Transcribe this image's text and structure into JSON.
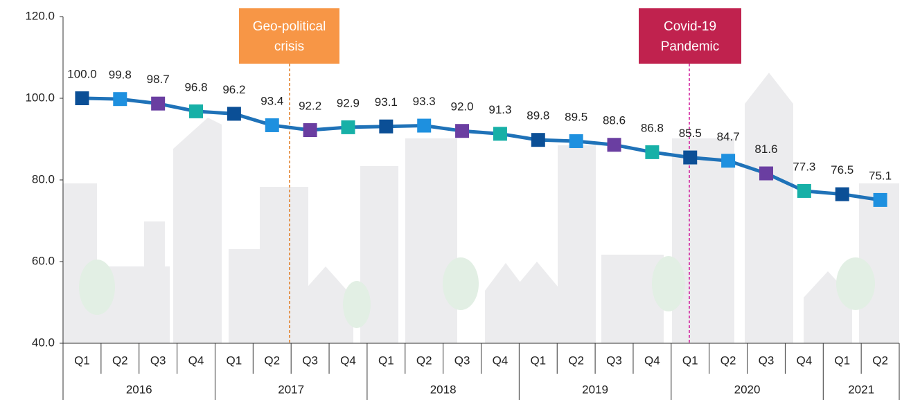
{
  "chart_data": {
    "type": "line",
    "groups": [
      {
        "label": "2016",
        "categories": [
          "Q1",
          "Q2",
          "Q3",
          "Q4"
        ]
      },
      {
        "label": "2017",
        "categories": [
          "Q1",
          "Q2",
          "Q3",
          "Q4"
        ]
      },
      {
        "label": "2018",
        "categories": [
          "Q1",
          "Q2",
          "Q3",
          "Q4"
        ]
      },
      {
        "label": "2019",
        "categories": [
          "Q1",
          "Q2",
          "Q3",
          "Q4"
        ]
      },
      {
        "label": "2020",
        "categories": [
          "Q1",
          "Q2",
          "Q3",
          "Q4"
        ]
      },
      {
        "label": "2021",
        "categories": [
          "Q1",
          "Q2"
        ]
      }
    ],
    "values": [
      100.0,
      99.8,
      98.7,
      96.8,
      96.2,
      93.4,
      92.2,
      92.9,
      93.1,
      93.3,
      92.0,
      91.3,
      89.8,
      89.5,
      88.6,
      86.8,
      85.5,
      84.7,
      81.6,
      77.3,
      76.5,
      75.1
    ],
    "value_labels": [
      "100.0",
      "99.8",
      "98.7",
      "96.8",
      "96.2",
      "93.4",
      "92.2",
      "92.9",
      "93.1",
      "93.3",
      "92.0",
      "91.3",
      "89.8",
      "89.5",
      "88.6",
      "86.8",
      "85.5",
      "84.7",
      "81.6",
      "77.3",
      "76.5",
      "75.1"
    ],
    "line_color": "#1f72b8",
    "marker_colors": [
      "#0b4f96",
      "#1e90df",
      "#6a3ea1",
      "#17b0a7"
    ],
    "ylim": [
      40,
      120
    ],
    "yticks": [
      {
        "value": 40,
        "label": "40.0"
      },
      {
        "value": 60,
        "label": "60.0"
      },
      {
        "value": 80,
        "label": "80.0"
      },
      {
        "value": 100,
        "label": "100.0"
      },
      {
        "value": 120,
        "label": "120.0"
      }
    ],
    "annotations": [
      {
        "lines": [
          "Geo-political",
          "crisis"
        ],
        "color": "#f79646",
        "line_color": "#e07b22"
      },
      {
        "lines": [
          "Covid-19",
          "Pandemic"
        ],
        "color": "#c0224e",
        "line_color": "#d0189a"
      }
    ]
  }
}
